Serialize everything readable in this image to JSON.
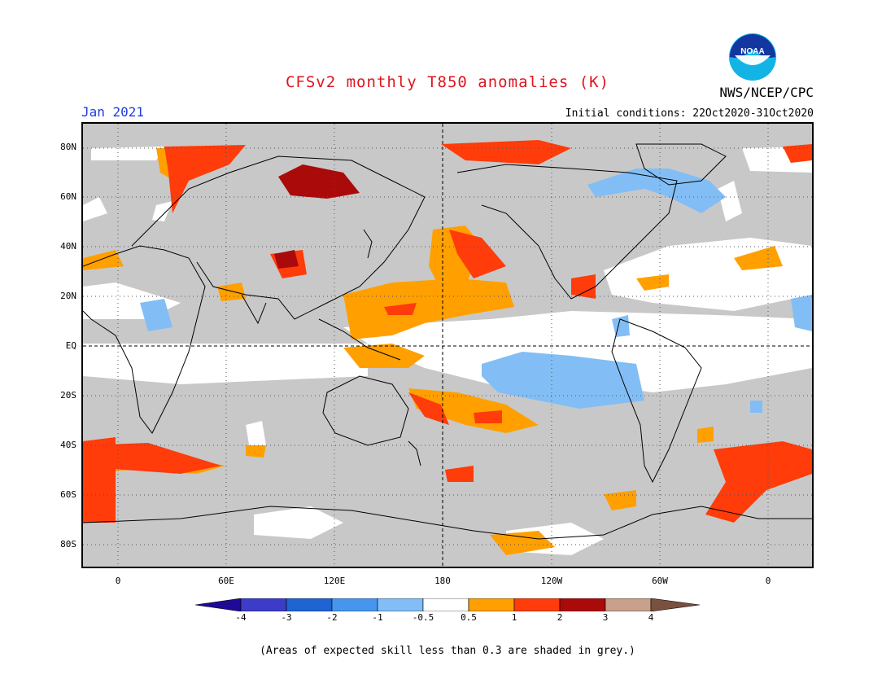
{
  "title": "CFSv2 monthly T850 anomalies (K)",
  "month": "Jan 2021",
  "organization": "NWS/NCEP/CPC",
  "logo_text": "NOAA",
  "initial_conditions": "Initial conditions: 22Oct2020-31Oct2020",
  "footnote": "(Areas of expected skill less than 0.3 are shaded in grey.)",
  "latitude_labels": [
    "80N",
    "60N",
    "40N",
    "20N",
    "EQ",
    "20S",
    "40S",
    "60S",
    "80S"
  ],
  "longitude_labels": [
    "0",
    "60E",
    "120E",
    "180",
    "120W",
    "60W",
    "0"
  ],
  "colorbar": {
    "labels": [
      "-4",
      "-3",
      "-2",
      "-1",
      "-0.5",
      "0.5",
      "1",
      "2",
      "3",
      "4"
    ],
    "colors": [
      "#1e0a96",
      "#3c3cc8",
      "#1e64d2",
      "#4696f0",
      "#82bef5",
      "#ffffff",
      "#ffa000",
      "#ff3c0a",
      "#aa0a0a",
      "#c8a08c",
      "#7a5040"
    ]
  },
  "colors": {
    "skill_grey": "#c8c8c8",
    "title_red": "#e0141e",
    "month_blue": "#1e3cdc"
  }
}
